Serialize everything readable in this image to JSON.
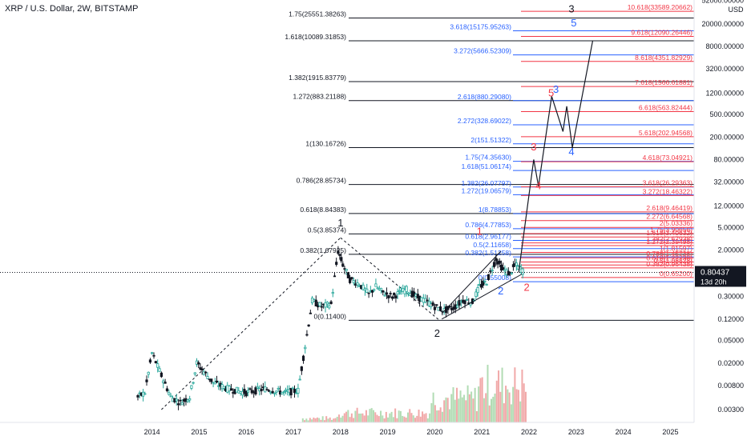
{
  "header": {
    "title": "XRP / U.S. Dollar, 2W, BITSTAMP"
  },
  "chart_data": {
    "type": "candlestick",
    "symbol": "XRP / U.S. Dollar",
    "interval": "2W",
    "exchange": "BITSTAMP",
    "currency": "USD",
    "y_scale": "log",
    "last_price": {
      "value": "0.80437",
      "countdown": "13d 20h"
    },
    "x_ticks": [
      "2014",
      "2015",
      "2016",
      "2017",
      "2018",
      "2019",
      "2020",
      "2021",
      "2022",
      "2023",
      "2024",
      "2025"
    ],
    "y_ticks": [
      {
        "label": "52000.00000",
        "v": 52000
      },
      {
        "label": "20000.00000",
        "v": 20000
      },
      {
        "label": "8000.00000",
        "v": 8000
      },
      {
        "label": "3200.00000",
        "v": 3200
      },
      {
        "label": "1200.00000",
        "v": 1200
      },
      {
        "label": "500.00000",
        "v": 500
      },
      {
        "label": "200.00000",
        "v": 200
      },
      {
        "label": "80.00000",
        "v": 80
      },
      {
        "label": "32.00000",
        "v": 32
      },
      {
        "label": "12.00000",
        "v": 12
      },
      {
        "label": "5.00000",
        "v": 5
      },
      {
        "label": "2.00000",
        "v": 2
      },
      {
        "label": "0.30000",
        "v": 0.3
      },
      {
        "label": "0.12000",
        "v": 0.12
      },
      {
        "label": "0.05000",
        "v": 0.05
      },
      {
        "label": "0.02000",
        "v": 0.02
      },
      {
        "label": "0.00800",
        "v": 0.008
      },
      {
        "label": "0.00300",
        "v": 0.003
      }
    ],
    "fib_black": [
      {
        "label": "1.75(25551.38263)",
        "v": 25551.38263
      },
      {
        "label": "1.618(10089.31853)",
        "v": 10089.31853
      },
      {
        "label": "1.382(1915.83779)",
        "v": 1915.83779
      },
      {
        "label": "1.272(883.21188)",
        "v": 883.21188
      },
      {
        "label": "1(130.16726)",
        "v": 130.16726
      },
      {
        "label": "0.786(28.85734)",
        "v": 28.85734
      },
      {
        "label": "0.618(8.84383)",
        "v": 8.84383
      },
      {
        "label": "0.5(3.85374)",
        "v": 3.85374
      },
      {
        "label": "0.382(1.67925)",
        "v": 1.67925
      },
      {
        "label": "0(0.11400)",
        "v": 0.114
      }
    ],
    "fib_blue": [
      {
        "label": "3.618(15175.95263)",
        "v": 15175.95263
      },
      {
        "label": "3.272(5666.52309)",
        "v": 5666.52309
      },
      {
        "label": "2.618(880.29080)",
        "v": 880.2908
      },
      {
        "label": "2.272(328.69022)",
        "v": 328.69022
      },
      {
        "label": "2(151.51322)",
        "v": 151.51322
      },
      {
        "label": "1.75(74.35630)",
        "v": 74.3563
      },
      {
        "label": "1.618(51.06174)",
        "v": 51.06174
      },
      {
        "label": "1.382(26.07797)",
        "v": 26.07797
      },
      {
        "label": "1.272(19.06579)",
        "v": 19.06579
      },
      {
        "label": "1(8.78853)",
        "v": 8.78853
      },
      {
        "label": "0.786(4.77853)",
        "v": 4.77853
      },
      {
        "label": "0.618(2.96177)",
        "v": 2.96177
      },
      {
        "label": "0.5(2.11658)",
        "v": 2.11658
      },
      {
        "label": "0.382(1.51258)",
        "v": 1.51258
      },
      {
        "label": "0(0.55008)",
        "v": 0.55008
      }
    ],
    "fib_red": [
      {
        "label": "10.618(33589.20662)",
        "v": 33589.20662
      },
      {
        "label": "9.618(12090.26446)",
        "v": 12090.26446
      },
      {
        "label": "8.618(4351.82929)",
        "v": 4351.82929
      },
      {
        "label": "7.618(1566.61881)",
        "v": 1566.61881
      },
      {
        "label": "6.618(563.82444)",
        "v": 563.82444
      },
      {
        "label": "5.618(202.94568)",
        "v": 202.94568
      },
      {
        "label": "4.618(73.04921)",
        "v": 73.04921
      },
      {
        "label": "3.618(26.29363)",
        "v": 26.29363
      },
      {
        "label": "3.272(18.46322)",
        "v": 18.46322
      },
      {
        "label": "2.618(9.46419)",
        "v": 9.46419
      },
      {
        "label": "2.272(6.64568)",
        "v": 6.64568
      },
      {
        "label": "2(5.03336)",
        "v": 5.03336
      },
      {
        "label": "1.75(3.90656)",
        "v": 3.90656
      },
      {
        "label": "1.618(3.40632)",
        "v": 3.40632
      },
      {
        "label": "1.382(2.67938)",
        "v": 2.67938
      },
      {
        "label": "1.272(2.39498)",
        "v": 2.39498
      },
      {
        "label": "1(1.81597)",
        "v": 1.81597
      },
      {
        "label": "0.786(1.45738)",
        "v": 1.45738
      },
      {
        "label": "0.618(1.22738)",
        "v": 1.22738
      },
      {
        "label": "0.5(1.08828)",
        "v": 1.08828
      },
      {
        "label": "0.382(0.96438)",
        "v": 0.96438
      },
      {
        "label": "0(0.65200)",
        "v": 0.652
      }
    ],
    "wave_labels": [
      {
        "text": "1",
        "color": "#131722",
        "t": 2018.0,
        "v": 5.2
      },
      {
        "text": "2",
        "color": "#131722",
        "t": 2020.05,
        "v": 0.058
      },
      {
        "text": "3",
        "color": "#131722",
        "t": 2022.9,
        "v": 32000
      },
      {
        "text": "1",
        "color": "#f23645",
        "t": 2020.95,
        "v": 3.7
      },
      {
        "text": "2",
        "color": "#2962ff",
        "t": 2021.4,
        "v": 0.33
      },
      {
        "text": "2",
        "color": "#f23645",
        "t": 2021.95,
        "v": 0.38
      },
      {
        "text": "3",
        "color": "#f23645",
        "t": 2022.1,
        "v": 115
      },
      {
        "text": "4",
        "color": "#f23645",
        "t": 2022.2,
        "v": 24
      },
      {
        "text": "5",
        "color": "#f23645",
        "t": 2022.47,
        "v": 1050
      },
      {
        "text": "3",
        "color": "#2962ff",
        "t": 2022.57,
        "v": 1220
      },
      {
        "text": "4",
        "color": "#2962ff",
        "t": 2022.9,
        "v": 95
      },
      {
        "text": "5",
        "color": "#2962ff",
        "t": 2022.95,
        "v": 18000
      }
    ],
    "projection_path": [
      {
        "t": 2021.78,
        "v": 0.8
      },
      {
        "t": 2022.1,
        "v": 80
      },
      {
        "t": 2022.2,
        "v": 27
      },
      {
        "t": 2022.48,
        "v": 1050
      },
      {
        "t": 2022.72,
        "v": 250
      },
      {
        "t": 2022.8,
        "v": 700
      },
      {
        "t": 2022.92,
        "v": 130
      },
      {
        "t": 2023.35,
        "v": 10000
      }
    ],
    "dashed_lines": [
      [
        {
          "t": 2014.2,
          "v": 0.003
        },
        {
          "t": 2018.0,
          "v": 3.3
        }
      ],
      [
        {
          "t": 2018.0,
          "v": 3.3
        },
        {
          "t": 2020.1,
          "v": 0.114
        }
      ]
    ],
    "price_history": [
      {
        "t": 2013.7,
        "v": 0.005
      },
      {
        "t": 2013.85,
        "v": 0.006
      },
      {
        "t": 2014.0,
        "v": 0.03
      },
      {
        "t": 2014.2,
        "v": 0.012
      },
      {
        "t": 2014.4,
        "v": 0.005
      },
      {
        "t": 2014.6,
        "v": 0.004
      },
      {
        "t": 2014.8,
        "v": 0.005
      },
      {
        "t": 2014.95,
        "v": 0.02
      },
      {
        "t": 2015.1,
        "v": 0.014
      },
      {
        "t": 2015.3,
        "v": 0.009
      },
      {
        "t": 2015.6,
        "v": 0.007
      },
      {
        "t": 2016.0,
        "v": 0.006
      },
      {
        "t": 2016.4,
        "v": 0.007
      },
      {
        "t": 2016.8,
        "v": 0.006
      },
      {
        "t": 2017.1,
        "v": 0.0065
      },
      {
        "t": 2017.25,
        "v": 0.04
      },
      {
        "t": 2017.4,
        "v": 0.25
      },
      {
        "t": 2017.6,
        "v": 0.2
      },
      {
        "t": 2017.8,
        "v": 0.22
      },
      {
        "t": 2017.95,
        "v": 1.9
      },
      {
        "t": 2018.05,
        "v": 1.1
      },
      {
        "t": 2018.2,
        "v": 0.6
      },
      {
        "t": 2018.4,
        "v": 0.5
      },
      {
        "t": 2018.6,
        "v": 0.33
      },
      {
        "t": 2018.75,
        "v": 0.45
      },
      {
        "t": 2018.9,
        "v": 0.35
      },
      {
        "t": 2019.1,
        "v": 0.3
      },
      {
        "t": 2019.4,
        "v": 0.4
      },
      {
        "t": 2019.6,
        "v": 0.3
      },
      {
        "t": 2019.8,
        "v": 0.25
      },
      {
        "t": 2020.0,
        "v": 0.2
      },
      {
        "t": 2020.2,
        "v": 0.17
      },
      {
        "t": 2020.4,
        "v": 0.19
      },
      {
        "t": 2020.6,
        "v": 0.26
      },
      {
        "t": 2020.8,
        "v": 0.24
      },
      {
        "t": 2020.95,
        "v": 0.45
      },
      {
        "t": 2021.1,
        "v": 0.55
      },
      {
        "t": 2021.3,
        "v": 1.4
      },
      {
        "t": 2021.45,
        "v": 0.9
      },
      {
        "t": 2021.6,
        "v": 0.75
      },
      {
        "t": 2021.7,
        "v": 1.1
      },
      {
        "t": 2021.8,
        "v": 0.95
      },
      {
        "t": 2021.9,
        "v": 0.8
      }
    ],
    "x_range": [
      2013.3,
      2025.6
    ],
    "y_range": [
      0.0022,
      60000
    ],
    "grid": false,
    "colors": {
      "bull": "#26a69a",
      "bear": "#131722",
      "fib_black": "#131722",
      "fib_blue": "#2962ff",
      "fib_red": "#f23645",
      "price_tag": "#131722"
    }
  }
}
